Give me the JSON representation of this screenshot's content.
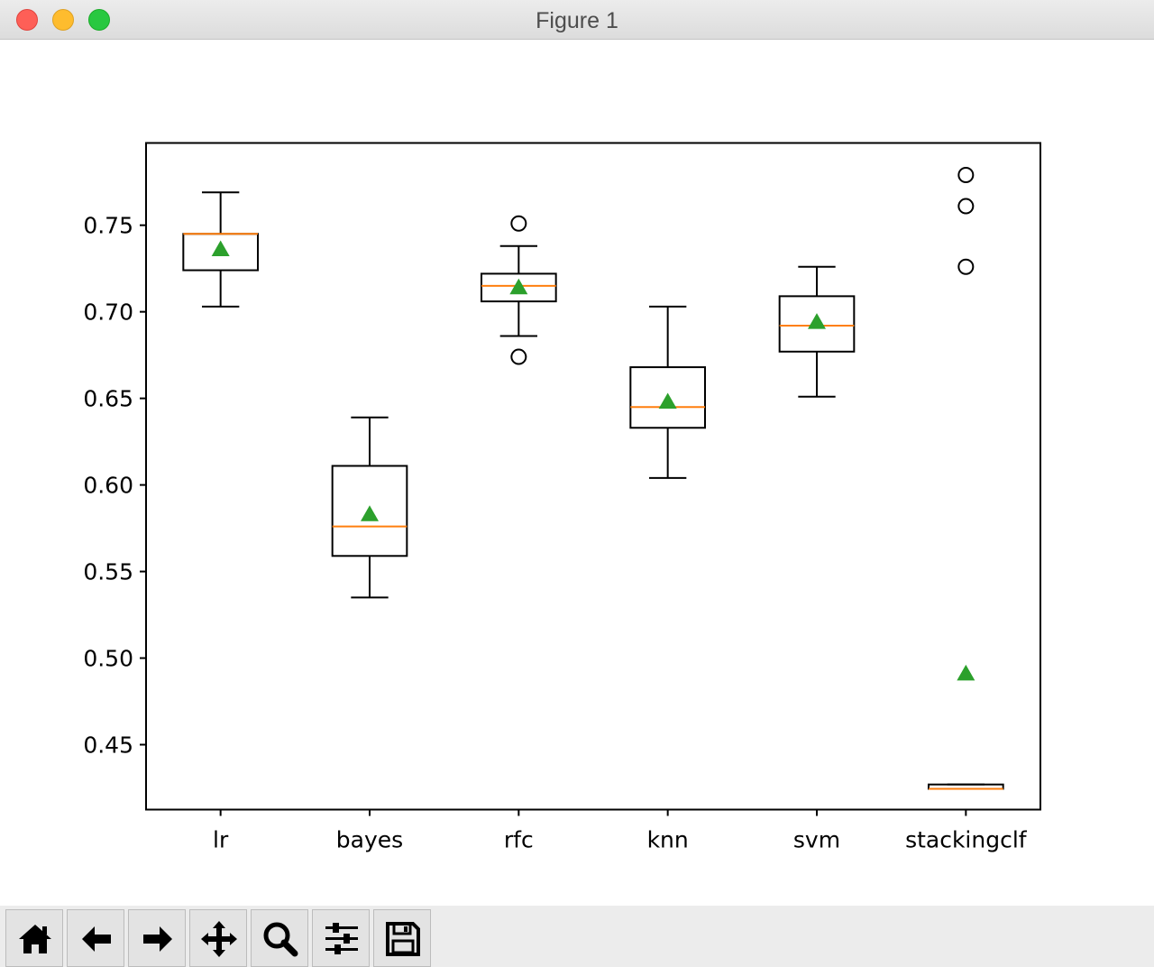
{
  "window": {
    "title": "Figure 1"
  },
  "toolbar": {
    "buttons": [
      {
        "name": "home",
        "icon": "home-icon"
      },
      {
        "name": "back",
        "icon": "arrow-left-icon"
      },
      {
        "name": "forward",
        "icon": "arrow-right-icon"
      },
      {
        "name": "pan",
        "icon": "move-icon"
      },
      {
        "name": "zoom",
        "icon": "zoom-icon"
      },
      {
        "name": "configure-subplots",
        "icon": "sliders-icon"
      },
      {
        "name": "save",
        "icon": "save-icon"
      }
    ]
  },
  "chart_data": {
    "type": "box",
    "title": "",
    "xlabel": "",
    "ylabel": "",
    "ylim": [
      0.4125,
      0.7975
    ],
    "yticks": [
      0.45,
      0.5,
      0.55,
      0.6,
      0.65,
      0.7,
      0.75
    ],
    "ytick_labels": [
      "0.45",
      "0.50",
      "0.55",
      "0.60",
      "0.65",
      "0.70",
      "0.75"
    ],
    "grid": false,
    "colors": {
      "median": "#ff7f0e",
      "mean": "#2ca02c",
      "box": "#000000"
    },
    "categories": [
      "lr",
      "bayes",
      "rfc",
      "knn",
      "svm",
      "stackingclf"
    ],
    "boxes": [
      {
        "name": "lr",
        "whisker_low": 0.703,
        "q1": 0.724,
        "median": 0.745,
        "q3": 0.745,
        "whisker_high": 0.769,
        "mean": 0.736,
        "fliers": []
      },
      {
        "name": "bayes",
        "whisker_low": 0.535,
        "q1": 0.559,
        "median": 0.576,
        "q3": 0.611,
        "whisker_high": 0.639,
        "mean": 0.583,
        "fliers": []
      },
      {
        "name": "rfc",
        "whisker_low": 0.686,
        "q1": 0.706,
        "median": 0.715,
        "q3": 0.722,
        "whisker_high": 0.738,
        "mean": 0.714,
        "fliers": [
          0.751,
          0.674
        ]
      },
      {
        "name": "knn",
        "whisker_low": 0.604,
        "q1": 0.633,
        "median": 0.645,
        "q3": 0.668,
        "whisker_high": 0.703,
        "mean": 0.648,
        "fliers": []
      },
      {
        "name": "svm",
        "whisker_low": 0.651,
        "q1": 0.677,
        "median": 0.692,
        "q3": 0.709,
        "whisker_high": 0.726,
        "mean": 0.694,
        "fliers": []
      },
      {
        "name": "stackingclf",
        "whisker_low": 0.4245,
        "q1": 0.4245,
        "median": 0.4245,
        "q3": 0.427,
        "whisker_high": 0.427,
        "mean": 0.491,
        "fliers": [
          0.779,
          0.761,
          0.726
        ]
      }
    ]
  }
}
